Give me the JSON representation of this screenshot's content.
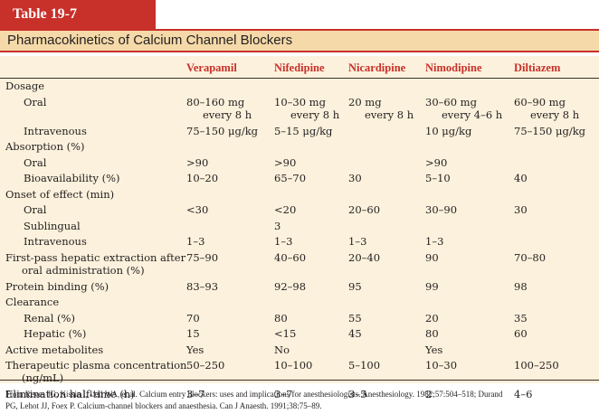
{
  "table_label": "Table 19-7",
  "title": "Pharmacokinetics of Calcium Channel Blockers",
  "columns": [
    "Verapamil",
    "Nifedipine",
    "Nicardipine",
    "Nimodipine",
    "Diltiazem"
  ],
  "rows": [
    {
      "label": [
        "Dosage"
      ],
      "indent": 0,
      "vals": [
        [],
        [],
        [],
        [],
        []
      ]
    },
    {
      "label": [
        "Oral"
      ],
      "indent": 1,
      "vals": [
        [
          "80–160 mg",
          "every 8 h"
        ],
        [
          "10–30 mg",
          "every 8 h"
        ],
        [
          "20 mg",
          "every 8 h"
        ],
        [
          "30–60 mg",
          "every 4–6 h"
        ],
        [
          "60–90 mg",
          "every 8 h"
        ]
      ]
    },
    {
      "label": [
        "Intravenous"
      ],
      "indent": 1,
      "vals": [
        [
          "75–150 μg/kg"
        ],
        [
          "5–15 μg/kg"
        ],
        [],
        [
          "10 μg/kg"
        ],
        [
          "75–150 μg/kg"
        ]
      ]
    },
    {
      "label": [
        "Absorption (%)"
      ],
      "indent": 0,
      "vals": [
        [],
        [],
        [],
        [],
        []
      ]
    },
    {
      "label": [
        "Oral"
      ],
      "indent": 1,
      "vals": [
        [
          ">90"
        ],
        [
          ">90"
        ],
        [],
        [
          ">90"
        ],
        []
      ]
    },
    {
      "label": [
        "Bioavailability (%)"
      ],
      "indent": 1,
      "vals": [
        [
          "10–20"
        ],
        [
          "65–70"
        ],
        [
          "30"
        ],
        [
          "5–10"
        ],
        [
          "40"
        ]
      ]
    },
    {
      "label": [
        "Onset of effect (min)"
      ],
      "indent": 0,
      "vals": [
        [],
        [],
        [],
        [],
        []
      ]
    },
    {
      "label": [
        "Oral"
      ],
      "indent": 1,
      "vals": [
        [
          "<30"
        ],
        [
          "<20"
        ],
        [
          "20–60"
        ],
        [
          "30–90"
        ],
        [
          "30"
        ]
      ]
    },
    {
      "label": [
        "Sublingual"
      ],
      "indent": 1,
      "vals": [
        [],
        [
          "3"
        ],
        [],
        [],
        []
      ]
    },
    {
      "label": [
        "Intravenous"
      ],
      "indent": 1,
      "vals": [
        [
          "1–3"
        ],
        [
          "1–3"
        ],
        [
          "1–3"
        ],
        [
          "1–3"
        ],
        []
      ]
    },
    {
      "label": [
        "First-pass hepatic extraction after",
        "oral administration (%)"
      ],
      "indent": 0,
      "vals": [
        [
          "75–90"
        ],
        [
          "40–60"
        ],
        [
          "20–40"
        ],
        [
          "90"
        ],
        [
          "70–80"
        ]
      ]
    },
    {
      "label": [
        "Protein binding (%)"
      ],
      "indent": 0,
      "vals": [
        [
          "83–93"
        ],
        [
          "92–98"
        ],
        [
          "95"
        ],
        [
          "99"
        ],
        [
          "98"
        ]
      ]
    },
    {
      "label": [
        "Clearance"
      ],
      "indent": 0,
      "vals": [
        [],
        [],
        [],
        [],
        []
      ]
    },
    {
      "label": [
        "Renal (%)"
      ],
      "indent": 1,
      "vals": [
        [
          "70"
        ],
        [
          "80"
        ],
        [
          "55"
        ],
        [
          "20"
        ],
        [
          "35"
        ]
      ]
    },
    {
      "label": [
        "Hepatic (%)"
      ],
      "indent": 1,
      "vals": [
        [
          "15"
        ],
        [
          "<15"
        ],
        [
          "45"
        ],
        [
          "80"
        ],
        [
          "60"
        ]
      ]
    },
    {
      "label": [
        "Active metabolites"
      ],
      "indent": 0,
      "vals": [
        [
          "Yes"
        ],
        [
          "No"
        ],
        [],
        [
          "Yes"
        ],
        []
      ]
    },
    {
      "label": [
        "Therapeutic plasma concentration",
        "(ng/mL)"
      ],
      "indent": 0,
      "vals": [
        [
          "50–250"
        ],
        [
          "10–100"
        ],
        [
          "5–100"
        ],
        [
          "10–30"
        ],
        [
          "100–250"
        ]
      ]
    },
    {
      "label": [
        "Elimination half-time (h)"
      ],
      "indent": 0,
      "vals": [
        [
          "3–7"
        ],
        [
          "3–7"
        ],
        [
          "3–5"
        ],
        [
          "2"
        ],
        [
          "4–6"
        ]
      ]
    }
  ],
  "footnote": [
    "From Reves JG, Kissin I, Lell WA, et al. Calcium entry blockers: uses and implications for anesthesiologists. Anesthesiology. 1982;57:504–518; Durand",
    "PG, Lehot JJ, Foex P. Calcium-channel blockers and anaesthesia. Can J Anaesth. 1991;38:75–89."
  ],
  "colors": {
    "accent_red": "#c8302a",
    "title_band": "#f5d9a8",
    "table_bg": "#fcf1dc"
  }
}
